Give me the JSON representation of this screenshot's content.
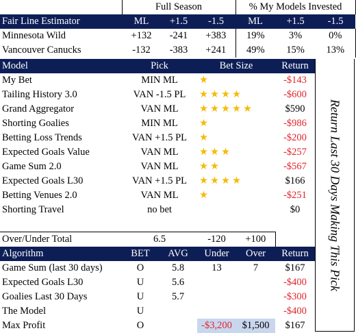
{
  "top_header": {
    "full_season": "Full Season",
    "models_invested": "% My Models Invested"
  },
  "estimator": {
    "title": "Fair Line Estimator",
    "cols": [
      "ML",
      "+1.5",
      "-1.5",
      "ML",
      "+1.5",
      "-1.5"
    ],
    "rows": [
      {
        "team": "Minnesota Wild",
        "ml": "+132",
        "p15": "-241",
        "m15": "+383",
        "i_ml": "19%",
        "i_p15": "3%",
        "i_m15": "0%"
      },
      {
        "team": "Vancouver Canucks",
        "ml": "-132",
        "p15": "-383",
        "m15": "+241",
        "i_ml": "49%",
        "i_p15": "15%",
        "i_m15": "13%"
      }
    ]
  },
  "models": {
    "headers": {
      "model": "Model",
      "pick": "Pick",
      "bet_size": "Bet Size",
      "return": "Return"
    },
    "rows": [
      {
        "name": "My Bet",
        "pick": "MIN ML",
        "stars": 1,
        "ret": "-$143",
        "neg": true
      },
      {
        "name": "Tailing History 3.0",
        "pick": "VAN -1.5 PL",
        "stars": 4,
        "ret": "-$600",
        "neg": true
      },
      {
        "name": "Grand Aggregator",
        "pick": "VAN ML",
        "stars": 5,
        "ret": "$590",
        "neg": false
      },
      {
        "name": "Shorting Goalies",
        "pick": "MIN ML",
        "stars": 1,
        "ret": "-$986",
        "neg": true
      },
      {
        "name": "Betting Loss Trends",
        "pick": "VAN +1.5 PL",
        "stars": 1,
        "ret": "-$200",
        "neg": true
      },
      {
        "name": "Expected Goals Value",
        "pick": "VAN ML",
        "stars": 3,
        "ret": "-$257",
        "neg": true
      },
      {
        "name": "Game Sum 2.0",
        "pick": "VAN ML",
        "stars": 2,
        "ret": "-$567",
        "neg": true
      },
      {
        "name": "Expected Goals L30",
        "pick": "VAN +1.5 PL",
        "stars": 4,
        "ret": "$166",
        "neg": false
      },
      {
        "name": "Betting Venues 2.0",
        "pick": "VAN ML",
        "stars": 1,
        "ret": "-$251",
        "neg": true
      },
      {
        "name": "Shorting Travel",
        "pick": "no bet",
        "stars": 0,
        "ret": "$0",
        "neg": false
      }
    ]
  },
  "sidebar_text": "Return Last 30 Days Making This Pick",
  "over_under": {
    "label": "Over/Under Total",
    "total": "6.5",
    "under_line": "-120",
    "over_line": "+100"
  },
  "algorithms": {
    "headers": {
      "algo": "Algorithm",
      "bet": "BET",
      "avg": "AVG",
      "under": "Under",
      "over": "Over",
      "ret": "Return"
    },
    "rows": [
      {
        "name": "Game Sum (last 30 days)",
        "bet": "O",
        "avg": "5.8",
        "under": "13",
        "over": "7",
        "ret": "$167",
        "neg": false
      },
      {
        "name": "Expected Goals L30",
        "bet": "U",
        "avg": "5.6",
        "under": "",
        "over": "",
        "ret": "-$400",
        "neg": true
      },
      {
        "name": "Goalies Last 30 Days",
        "bet": "U",
        "avg": "5.7",
        "under": "",
        "over": "",
        "ret": "-$300",
        "neg": true
      },
      {
        "name": "The Model",
        "bet": "U",
        "avg": "",
        "under": "",
        "over": "",
        "ret": "-$400",
        "neg": true
      }
    ],
    "max_profit": {
      "name": "Max Profit",
      "bet": "O",
      "avg": "",
      "under": "-$3,200",
      "over": "$1,500",
      "ret": "$167"
    }
  },
  "colors": {
    "header_bg": "#0d1e57",
    "negative": "#e0242c",
    "star": "#f4bb0a",
    "highlight": "#c9d7ee"
  }
}
